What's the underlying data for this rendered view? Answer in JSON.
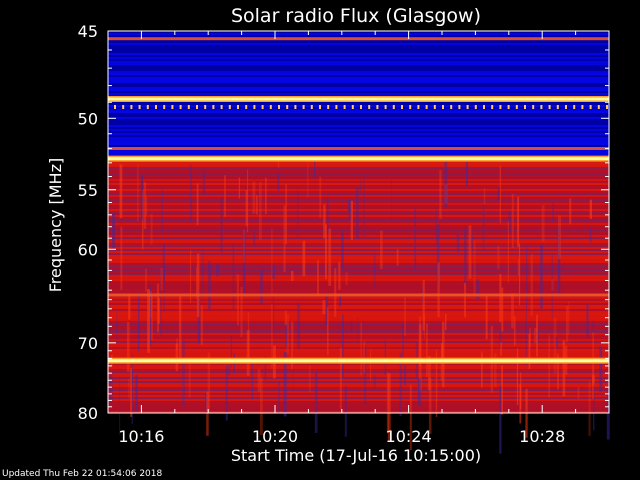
{
  "chart_data": {
    "type": "heatmap",
    "title": "Solar radio Flux (Glasgow)",
    "xlabel": "Start Time (17-Jul-16 10:15:00)",
    "ylabel": "Frequency [MHz]",
    "x_ticks": [
      "10:16",
      "10:20",
      "10:24",
      "10:28"
    ],
    "x_tick_minutes": [
      16,
      20,
      24,
      28
    ],
    "xlim_minutes": [
      15,
      30
    ],
    "y_ticks": [
      45,
      50,
      55,
      60,
      70,
      80
    ],
    "ylim": [
      45,
      80
    ],
    "y_scale": "reciprocal",
    "grid": false,
    "legend": "none",
    "colors": {
      "background": "#000000",
      "low": "#0000c8",
      "mid": "#d01010",
      "high": "#ffffa0",
      "axes": "#ffffff"
    },
    "bands": [
      {
        "freq_from": 45,
        "freq_to": 52.5,
        "level": "low"
      },
      {
        "freq_from": 52.5,
        "freq_to": 80,
        "level": "mid"
      }
    ],
    "bright_lines_mhz": [
      48.8,
      52.7,
      72.3
    ],
    "medium_lines_mhz": [
      45.4,
      52.0,
      64.5
    ]
  },
  "footer": "Updated Thu Feb 22 01:54:06 2018"
}
